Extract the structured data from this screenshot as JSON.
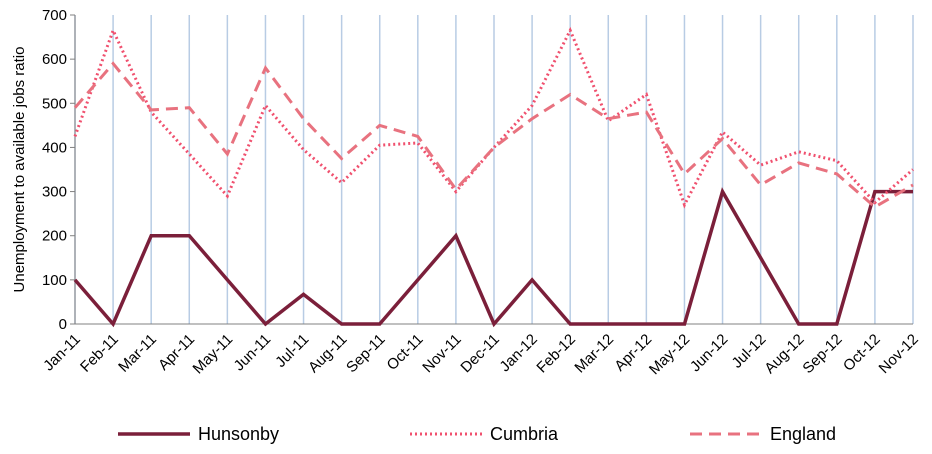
{
  "chart_data": {
    "type": "line",
    "title": "",
    "xlabel": "",
    "ylabel": "Unemployment to available jobs ratio",
    "ylim": [
      0,
      700
    ],
    "yticks": [
      0,
      100,
      200,
      300,
      400,
      500,
      600,
      700
    ],
    "grid": "vertical",
    "legend": "bottom",
    "categories": [
      "Jan-11",
      "Feb-11",
      "Mar-11",
      "Apr-11",
      "May-11",
      "Jun-11",
      "Jul-11",
      "Aug-11",
      "Sep-11",
      "Oct-11",
      "Nov-11",
      "Dec-11",
      "Jan-12",
      "Feb-12",
      "Mar-12",
      "Apr-12",
      "May-12",
      "Jun-12",
      "Jul-12",
      "Aug-12",
      "Sep-12",
      "Oct-12",
      "Nov-12"
    ],
    "series": [
      {
        "name": "Hunsonby",
        "style": "solid",
        "color": "#7b1f3a",
        "values": [
          100,
          0,
          200,
          200,
          100,
          0,
          67,
          0,
          0,
          100,
          200,
          0,
          100,
          0,
          0,
          0,
          0,
          300,
          150,
          0,
          0,
          300,
          300
        ]
      },
      {
        "name": "Cumbria",
        "style": "dotted",
        "color": "#f0506e",
        "values": [
          425,
          665,
          480,
          385,
          290,
          495,
          395,
          320,
          405,
          410,
          300,
          400,
          495,
          665,
          460,
          520,
          270,
          435,
          360,
          390,
          370,
          275,
          350
        ]
      },
      {
        "name": "England",
        "style": "dashed",
        "color": "#e8727f",
        "values": [
          490,
          590,
          485,
          490,
          385,
          580,
          465,
          375,
          450,
          425,
          305,
          400,
          465,
          520,
          465,
          480,
          340,
          420,
          315,
          365,
          340,
          265,
          315
        ]
      }
    ]
  }
}
